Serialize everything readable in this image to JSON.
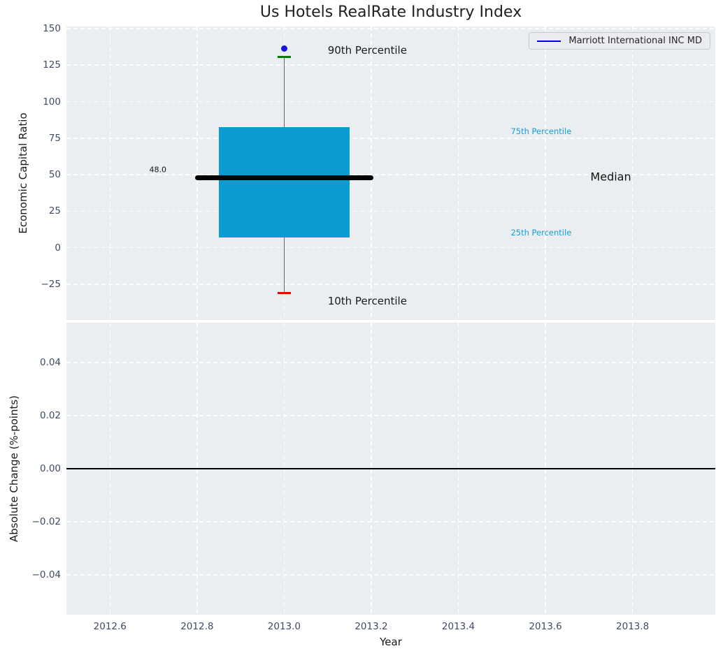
{
  "colors": {
    "figure_bg": "#ffffff",
    "axes_bg": "#ebeef0",
    "grid": "#ffffff",
    "tick_label": "#3e4b63",
    "title": "#202124",
    "box_fill": "#0b9cd4",
    "median_line": "#000000",
    "whisker": "#666666",
    "p90_cap": "#007d00",
    "p10_cap": "#ee0000",
    "company_dot": "#1414dd",
    "percentile_label": "#189dd1",
    "legend_line": "#0000dd",
    "zero_line": "#000000"
  },
  "chart_data": [
    {
      "type": "boxplot",
      "title": "Us Hotels RealRate Industry Index",
      "ylabel": "Economic Capital Ratio",
      "xlim": [
        2012.5,
        2013.99
      ],
      "ylim": [
        -49.4,
        151.4
      ],
      "grid": "white dashed",
      "legend": {
        "position": "upper-right",
        "entries": [
          {
            "label": "Marriott International INC MD",
            "color": "#0000dd",
            "marker": "line"
          }
        ]
      },
      "xticks": {
        "values": [
          2012.6,
          2012.8,
          2013.0,
          2013.2,
          2013.4,
          2013.6,
          2013.8
        ],
        "labels": [
          "2012.6",
          "2012.8",
          "2013.0",
          "2013.2",
          "2013.4",
          "2013.6",
          "2013.8"
        ]
      },
      "yticks": {
        "values": [
          150,
          125,
          100,
          75,
          50,
          25,
          0,
          -25
        ],
        "labels": [
          "150",
          "125",
          "100",
          "75",
          "50",
          "25",
          "0",
          "−25"
        ]
      },
      "box": {
        "x": 2013.0,
        "box_left": 2012.85,
        "box_right": 2013.15,
        "median_left": 2012.8,
        "median_right": 2013.2,
        "cap_halfwidth": 0.015,
        "p10": -31,
        "p25": 7,
        "median": 48.0,
        "p75": 82.5,
        "p90": 130.5,
        "company_point": {
          "x": 2013.0,
          "y": 136.5,
          "label": "Marriott International INC MD"
        }
      },
      "annotations": [
        {
          "text": "90th Percentile",
          "x": 2013.1,
          "y": 135.0,
          "kind": "callout",
          "anchor": "left"
        },
        {
          "text": "10th Percentile",
          "x": 2013.1,
          "y": -36.5,
          "kind": "callout",
          "anchor": "left"
        },
        {
          "text": "48.0",
          "x": 2012.71,
          "y": 53.5,
          "kind": "value",
          "anchor": "center"
        },
        {
          "text": "Median",
          "x": 2013.75,
          "y": 48.5,
          "kind": "median",
          "anchor": "center"
        },
        {
          "text": "75th Percentile",
          "x": 2013.59,
          "y": 79.5,
          "kind": "percentile",
          "anchor": "center"
        },
        {
          "text": "25th Percentile",
          "x": 2013.59,
          "y": 10.3,
          "kind": "percentile",
          "anchor": "center"
        }
      ]
    },
    {
      "type": "line",
      "ylabel": "Absolute Change (%-points)",
      "xlabel": "Year",
      "xlim": [
        2012.5,
        2013.99
      ],
      "ylim": [
        -0.055,
        0.055
      ],
      "grid": "white dashed",
      "zero_line": 0.0,
      "series": [],
      "xticks": {
        "values": [
          2012.6,
          2012.8,
          2013.0,
          2013.2,
          2013.4,
          2013.6,
          2013.8
        ],
        "labels": [
          "2012.6",
          "2012.8",
          "2013.0",
          "2013.2",
          "2013.4",
          "2013.6",
          "2013.8"
        ]
      },
      "yticks": {
        "values": [
          0.04,
          0.02,
          0.0,
          -0.02,
          -0.04
        ],
        "labels": [
          "0.04",
          "0.02",
          "0.00",
          "−0.02",
          "−0.04"
        ]
      }
    }
  ]
}
